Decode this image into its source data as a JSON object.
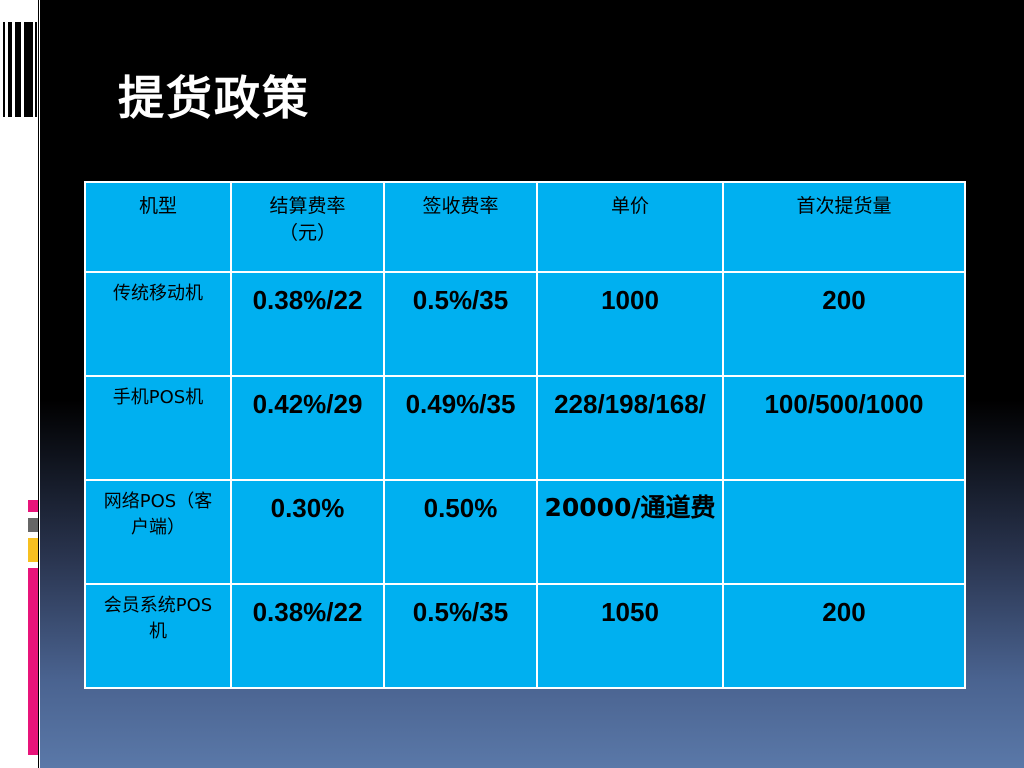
{
  "slide": {
    "title": "提货政策",
    "colors": {
      "table_fill": "#00b0f0",
      "table_border": "#ffffff",
      "background_top": "#000000",
      "background_bottom": "#5a78a8",
      "accent_pink": "#e8147a",
      "accent_yellow": "#f7c020"
    }
  },
  "table": {
    "headers": [
      "机型",
      "结算费率（元）",
      "签收费率",
      "单价",
      "首次提货量"
    ],
    "rows": [
      {
        "model": "传统移动机",
        "settle": "0.38%/22",
        "sign": "0.5%/35",
        "price": "1000",
        "first_order": "200"
      },
      {
        "model": "手机POS机",
        "settle": "0.42%/29",
        "sign": "0.49%/35",
        "price": "228/198/168/",
        "first_order": "100/500/1000"
      },
      {
        "model": "网络POS（客户端）",
        "settle": "0.30%",
        "sign": "0.50%",
        "price": "20000/通道费",
        "first_order": ""
      },
      {
        "model": "会员系统POS机",
        "settle": "0.38%/22",
        "sign": "0.5%/35",
        "price": "1050",
        "first_order": "200"
      }
    ]
  }
}
